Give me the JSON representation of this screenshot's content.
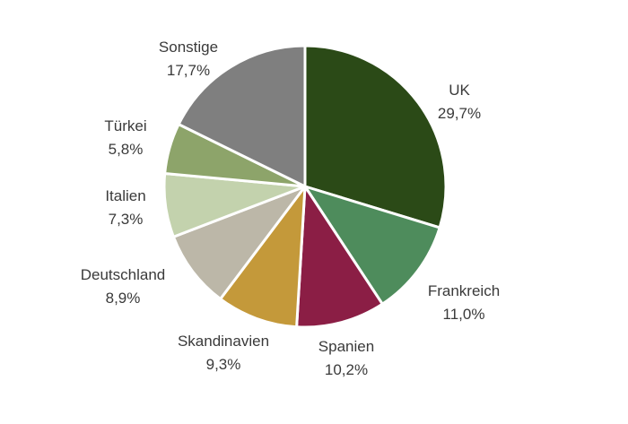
{
  "chart_data": {
    "type": "pie",
    "title": "",
    "start": "12 o'clock",
    "direction": "clockwise",
    "series": [
      {
        "label": "UK",
        "value": 29.7,
        "display": "29,7%",
        "color": "#2b4a17"
      },
      {
        "label": "Frankreich",
        "value": 11.0,
        "display": "11,0%",
        "color": "#4e8c5c"
      },
      {
        "label": "Spanien",
        "value": 10.2,
        "display": "10,2%",
        "color": "#8b1e45"
      },
      {
        "label": "Skandinavien",
        "value": 9.3,
        "display": "9,3%",
        "color": "#c4993a"
      },
      {
        "label": "Deutschland",
        "value": 8.9,
        "display": "8,9%",
        "color": "#bcb7a8"
      },
      {
        "label": "Italien",
        "value": 7.3,
        "display": "7,3%",
        "color": "#c3d2ad"
      },
      {
        "label": "Türkei",
        "value": 5.8,
        "display": "5,8%",
        "color": "#8da46a"
      },
      {
        "label": "Sonstige",
        "value": 17.7,
        "display": "17,7%",
        "color": "#7f7f7f"
      }
    ]
  }
}
